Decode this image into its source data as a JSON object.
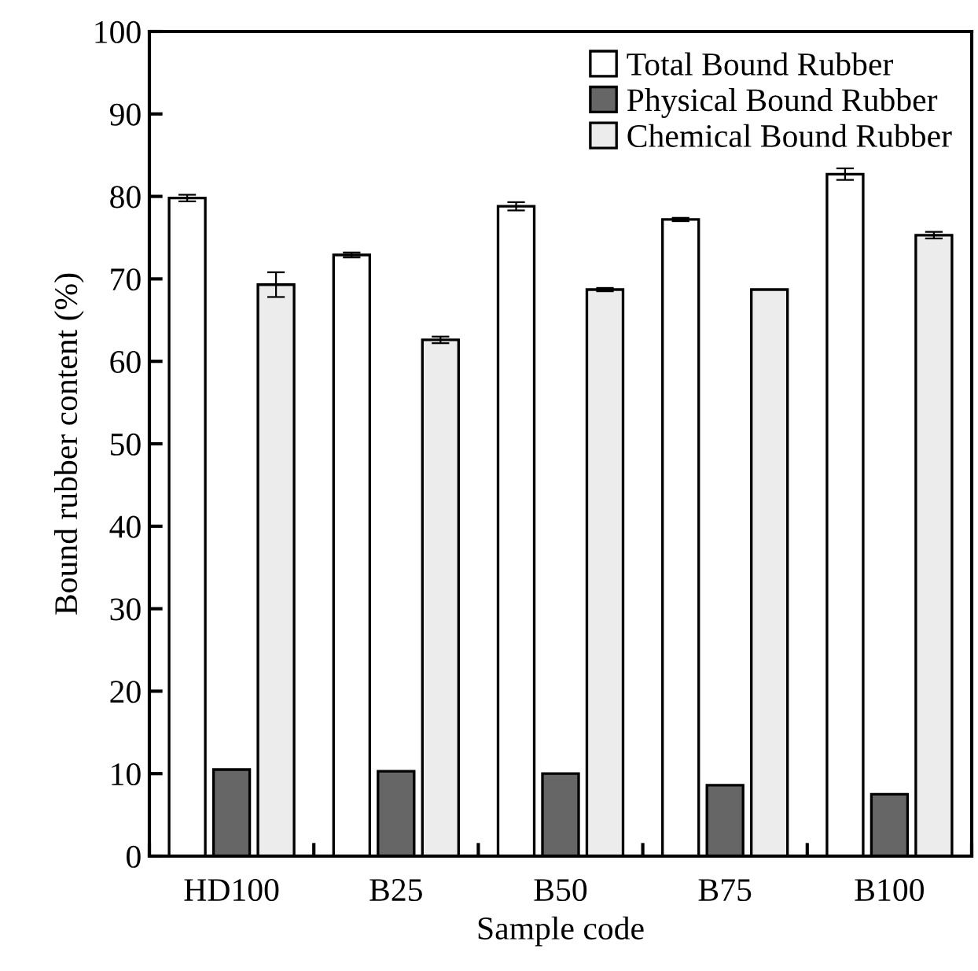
{
  "chart_data": {
    "type": "bar",
    "xlabel": "Sample code",
    "ylabel": "Bound rubber content (%)",
    "categories": [
      "HD100",
      "B25",
      "B50",
      "B75",
      "B100"
    ],
    "series": [
      {
        "name": "Total Bound Rubber",
        "color": "#ffffff",
        "values": [
          79.8,
          72.9,
          78.8,
          77.2,
          82.7
        ],
        "errors": [
          0.4,
          0.3,
          0.5,
          0.2,
          0.7
        ]
      },
      {
        "name": "Physical Bound Rubber",
        "color": "#666666",
        "values": [
          10.5,
          10.3,
          10.0,
          8.6,
          7.5
        ]
      },
      {
        "name": "Chemical Bound Rubber",
        "color": "#ececec",
        "values": [
          69.3,
          62.6,
          68.7,
          68.7,
          75.3
        ],
        "errors": [
          1.5,
          0.4,
          0.2,
          null,
          0.4
        ]
      }
    ],
    "ylim": [
      0,
      100
    ],
    "yticks": [
      0,
      10,
      20,
      30,
      40,
      50,
      60,
      70,
      80,
      90,
      100
    ],
    "grid": false,
    "legend": "top right"
  }
}
